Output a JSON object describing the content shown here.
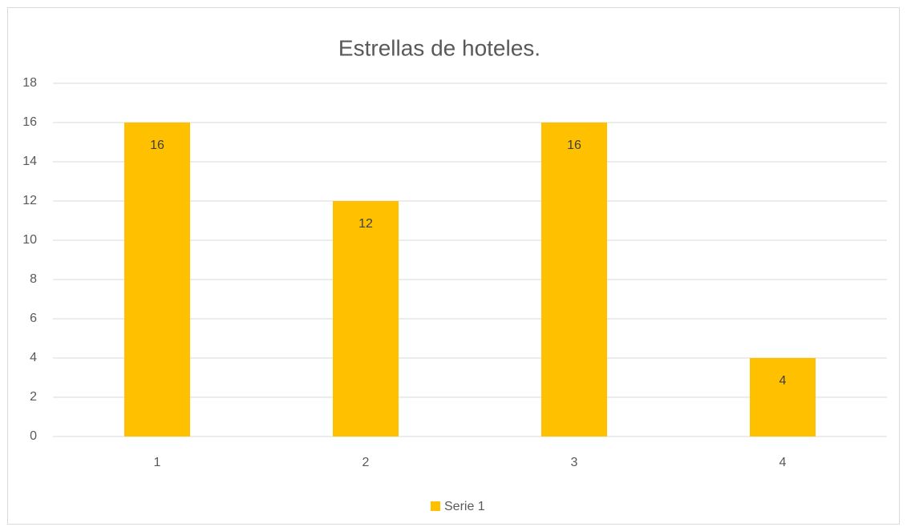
{
  "chart_data": {
    "type": "bar",
    "title": "Estrellas de hoteles.",
    "categories": [
      "1",
      "2",
      "3",
      "4"
    ],
    "series": [
      {
        "name": "Serie 1",
        "color": "#ffc000",
        "values": [
          16,
          12,
          16,
          4
        ]
      }
    ],
    "ylim": [
      0,
      18
    ],
    "yticks": [
      0,
      2,
      4,
      6,
      8,
      10,
      12,
      14,
      16,
      18
    ],
    "grid": true,
    "legend": "bottom"
  }
}
